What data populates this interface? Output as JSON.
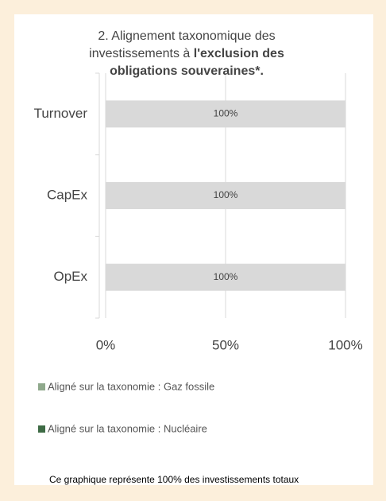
{
  "chart_data": {
    "type": "stacked_barh",
    "title": {
      "regular": "2. Alignement taxonomique des investissements à",
      "bold": "l'exclusion des obligations souveraines*."
    },
    "categories": [
      "Turnover",
      "CapEx",
      "OpEx"
    ],
    "series": [
      {
        "name": "Aligné sur la taxonomie : Gaz fossile",
        "color": "#8fa98c",
        "values": [
          0,
          0,
          0
        ]
      },
      {
        "name": "Aligné sur la taxonomie : Nucléaire",
        "color": "#3e6b45",
        "values": [
          0,
          0,
          0
        ]
      },
      {
        "color": "#d9d9d9",
        "values": [
          100,
          100,
          100
        ],
        "value_labels": [
          "100%",
          "100%",
          "100%"
        ]
      }
    ],
    "xlim": [
      0,
      100
    ],
    "xticks": [
      {
        "value": 0,
        "label": "0%"
      },
      {
        "value": 50,
        "label": "50%"
      },
      {
        "value": 100,
        "label": "100%"
      }
    ],
    "grid": true,
    "legend": "bottom",
    "footnote": "Ce graphique représente 100% des investissements totaux"
  }
}
